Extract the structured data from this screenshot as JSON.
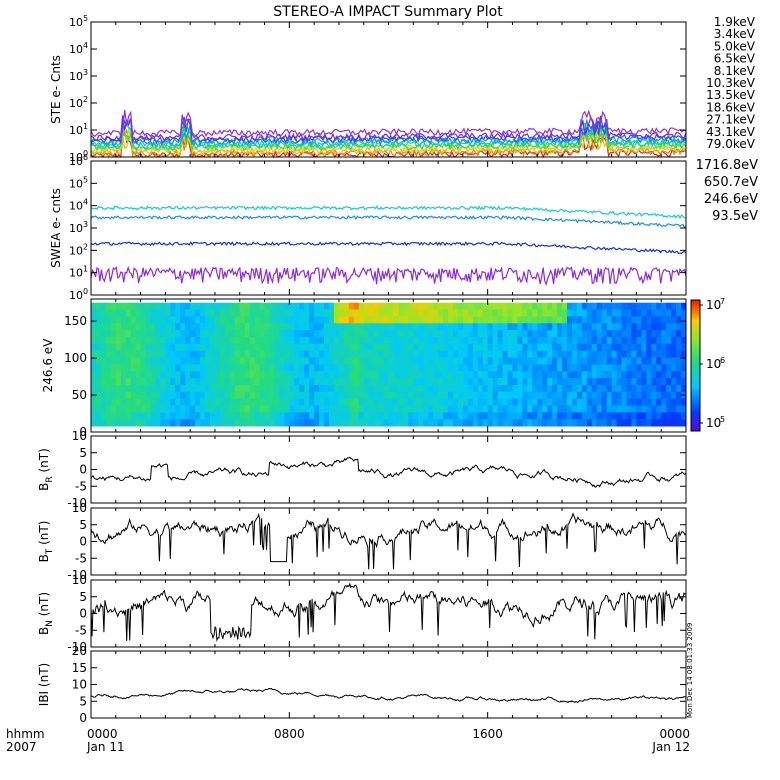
{
  "title": "STEREO-A IMPACT Summary Plot",
  "timestamp_note": "Mon Dec 14 08:01:33 2009",
  "x_axis": {
    "label_line1": "hhmm",
    "label_line2": "2007",
    "ticks": [
      {
        "time": "0000",
        "date": "Jan 11"
      },
      {
        "time": "0800",
        "date": ""
      },
      {
        "time": "1600",
        "date": ""
      },
      {
        "time": "0000",
        "date": "Jan 12"
      }
    ]
  },
  "chart_data": [
    {
      "type": "line",
      "id": "ste",
      "ylabel": "STE e- Cnts",
      "y_scale": "log",
      "ylim_exp": [
        0,
        5
      ],
      "yticks": [
        "10^0",
        "10^1",
        "10^2",
        "10^3",
        "10^4",
        "10^5"
      ],
      "series": [
        {
          "name": "1.9keV",
          "color": "#9a30d0",
          "level": 8.0
        },
        {
          "name": "3.4keV",
          "color": "#6a2fe0",
          "level": 5.5
        },
        {
          "name": "5.0keV",
          "color": "#3050f0",
          "level": 4.5
        },
        {
          "name": "6.5keV",
          "color": "#1890e8",
          "level": 3.8
        },
        {
          "name": "8.1keV",
          "color": "#10c0d8",
          "level": 3.2
        },
        {
          "name": "10.3keV",
          "color": "#10d890",
          "level": 2.8
        },
        {
          "name": "13.5keV",
          "color": "#30e030",
          "level": 2.4
        },
        {
          "name": "18.6keV",
          "color": "#b8e020",
          "level": 2.0
        },
        {
          "name": "27.1keV",
          "color": "#f0c000",
          "level": 1.7
        },
        {
          "name": "43.1keV",
          "color": "#f08000",
          "level": 1.4
        },
        {
          "name": "79.0keV",
          "color": "#e02020",
          "level": 1.2
        }
      ]
    },
    {
      "type": "line",
      "id": "swea",
      "ylabel": "SWEA e- cnts",
      "y_scale": "log",
      "ylim_exp": [
        0,
        6
      ],
      "yticks": [
        "10^0",
        "10^1",
        "10^2",
        "10^3",
        "10^4",
        "10^5",
        "10^6"
      ],
      "series": [
        {
          "name": "1716.8eV",
          "color": "#8a2be2",
          "level": 10
        },
        {
          "name": "650.7eV",
          "color": "#1a30d8",
          "level": 200
        },
        {
          "name": "246.6eV",
          "color": "#1a90e0",
          "level": 3000
        },
        {
          "name": "93.5eV",
          "color": "#10d0c8",
          "level": 8000
        }
      ]
    },
    {
      "type": "heatmap",
      "id": "pad",
      "ylabel": "246.6 eV",
      "ylim": [
        0,
        180
      ],
      "yticks": [
        "0",
        "50",
        "100",
        "150"
      ],
      "colorbar": {
        "scale": "log",
        "ticks": [
          "10^5",
          "10^6",
          "10^7"
        ]
      }
    },
    {
      "type": "line",
      "id": "br",
      "ylabel": "B_R (nT)",
      "ylabel_main": "B",
      "ylabel_sub": "R",
      "ylabel_unit": "(nT)",
      "ylim": [
        -10,
        10
      ],
      "yticks": [
        "10",
        "5",
        "0",
        "-5",
        "-10"
      ]
    },
    {
      "type": "line",
      "id": "bt",
      "ylabel": "B_T (nT)",
      "ylabel_main": "B",
      "ylabel_sub": "T",
      "ylabel_unit": "(nT)",
      "ylim": [
        -10,
        10
      ],
      "yticks": [
        "10",
        "5",
        "0",
        "-5",
        "-10"
      ]
    },
    {
      "type": "line",
      "id": "bn",
      "ylabel": "B_N (nT)",
      "ylabel_main": "B",
      "ylabel_sub": "N",
      "ylabel_unit": "(nT)",
      "ylim": [
        -10,
        10
      ],
      "yticks": [
        "10",
        "5",
        "0",
        "-5",
        "-10"
      ]
    },
    {
      "type": "line",
      "id": "bmag",
      "ylabel": "IBI (nT)",
      "ylim": [
        0,
        20
      ],
      "yticks": [
        "20",
        "15",
        "10",
        "5",
        "0"
      ]
    }
  ]
}
